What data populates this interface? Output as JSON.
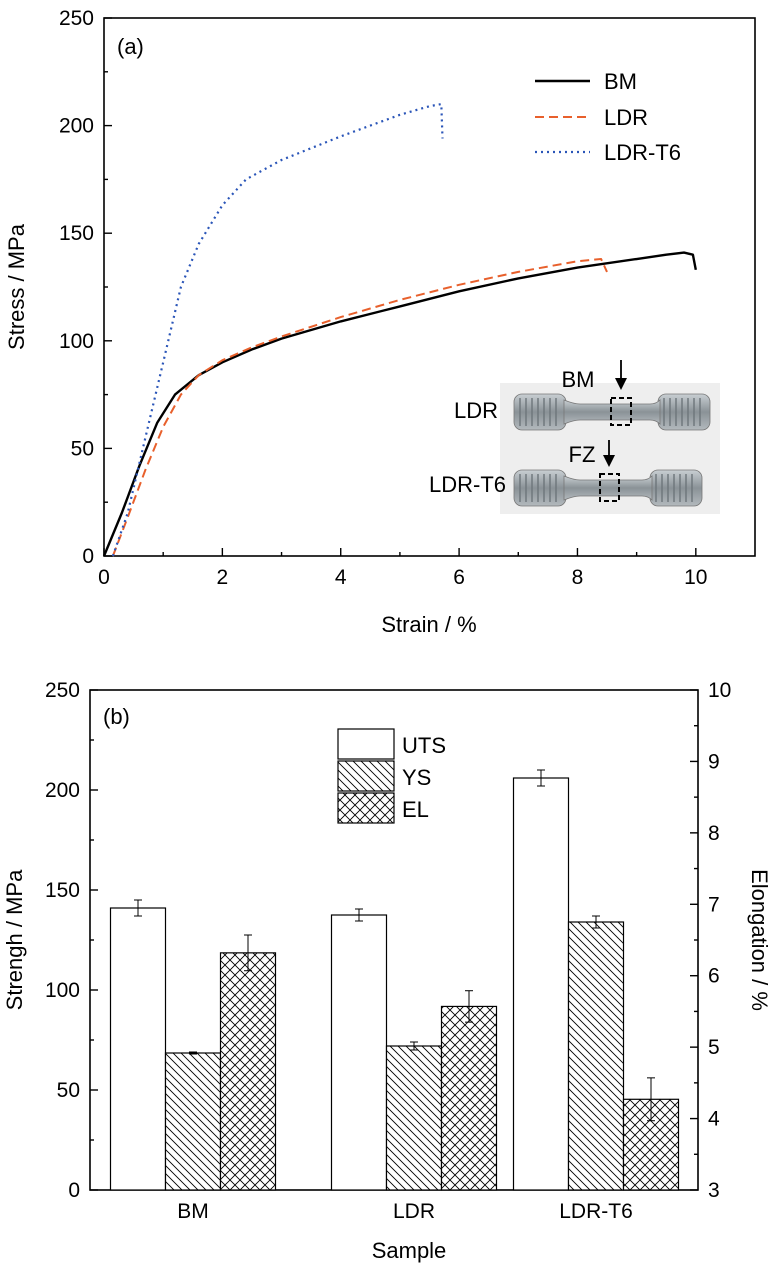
{
  "chart_data": [
    {
      "type": "line",
      "panel_label": "(a)",
      "xlabel": "Strain / %",
      "ylabel": "Stress / MPa",
      "xlim": [
        0,
        11
      ],
      "ylim": [
        0,
        250
      ],
      "xticks": [
        0,
        2,
        4,
        6,
        8,
        10
      ],
      "yticks": [
        0,
        50,
        100,
        150,
        200,
        250
      ],
      "grid": false,
      "legend_position": "top-right",
      "series": [
        {
          "name": "BM",
          "color": "#000000",
          "style": "solid",
          "points": [
            [
              0,
              0
            ],
            [
              0.3,
              20
            ],
            [
              0.6,
              42
            ],
            [
              0.9,
              62
            ],
            [
              1.2,
              75
            ],
            [
              1.6,
              84
            ],
            [
              2.0,
              90
            ],
            [
              2.5,
              96
            ],
            [
              3.0,
              101
            ],
            [
              4.0,
              109
            ],
            [
              5.0,
              116
            ],
            [
              6.0,
              123
            ],
            [
              7.0,
              129
            ],
            [
              8.0,
              134
            ],
            [
              9.0,
              138
            ],
            [
              9.5,
              140
            ],
            [
              9.8,
              141
            ],
            [
              9.95,
              140
            ],
            [
              10.0,
              133
            ]
          ]
        },
        {
          "name": "LDR",
          "color": "#e8602c",
          "style": "dashed",
          "points": [
            [
              0.15,
              0
            ],
            [
              0.4,
              18
            ],
            [
              0.7,
              40
            ],
            [
              1.0,
              60
            ],
            [
              1.3,
              75
            ],
            [
              1.6,
              84
            ],
            [
              2.0,
              91
            ],
            [
              2.5,
              97
            ],
            [
              3.0,
              102
            ],
            [
              4.0,
              111
            ],
            [
              5.0,
              119
            ],
            [
              6.0,
              126
            ],
            [
              7.0,
              132
            ],
            [
              8.0,
              137
            ],
            [
              8.4,
              138
            ],
            [
              8.5,
              132
            ]
          ]
        },
        {
          "name": "LDR-T6",
          "color": "#2a55b8",
          "style": "dotted",
          "points": [
            [
              0.15,
              0
            ],
            [
              0.4,
              20
            ],
            [
              0.7,
              55
            ],
            [
              1.0,
              90
            ],
            [
              1.3,
              125
            ],
            [
              1.6,
              145
            ],
            [
              2.0,
              163
            ],
            [
              2.4,
              175
            ],
            [
              3.0,
              184
            ],
            [
              4.0,
              195
            ],
            [
              5.0,
              205
            ],
            [
              5.5,
              209
            ],
            [
              5.7,
              210
            ],
            [
              5.72,
              194
            ]
          ]
        }
      ],
      "inset": {
        "labels": [
          "BM",
          "LDR",
          "FZ",
          "LDR-T6"
        ]
      }
    },
    {
      "type": "bar",
      "panel_label": "(b)",
      "xlabel": "Sample",
      "ylabel": "Strengh / MPa",
      "y2label": "Elongation / %",
      "categories": [
        "BM",
        "LDR",
        "LDR-T6"
      ],
      "ylim": [
        0,
        250
      ],
      "yticks": [
        0,
        50,
        100,
        150,
        200,
        250
      ],
      "y2lim": [
        3,
        10
      ],
      "y2ticks": [
        3,
        4,
        5,
        6,
        7,
        8,
        9,
        10
      ],
      "legend_position": "top-center",
      "series": [
        {
          "name": "UTS",
          "axis": "left",
          "pattern": "none",
          "values": [
            141,
            137.5,
            206
          ],
          "errors": [
            4,
            3,
            4
          ]
        },
        {
          "name": "YS",
          "axis": "left",
          "pattern": "hatch",
          "values": [
            68.5,
            72,
            134
          ],
          "errors": [
            0.5,
            2,
            3
          ]
        },
        {
          "name": "EL",
          "axis": "right",
          "pattern": "crosshatch",
          "values": [
            6.32,
            5.57,
            4.27
          ],
          "errors": [
            0.25,
            0.22,
            0.3
          ]
        }
      ]
    }
  ]
}
